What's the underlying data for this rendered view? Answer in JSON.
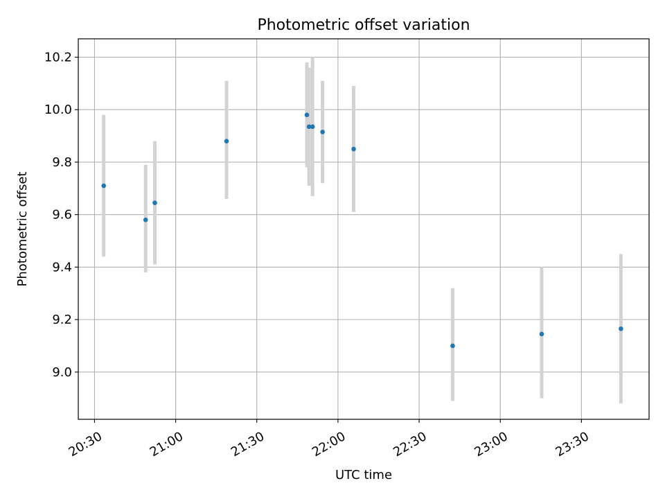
{
  "chart_data": {
    "type": "scatter",
    "title": "Photometric offset variation",
    "xlabel": "UTC time",
    "ylabel": "Photometric offset",
    "x_ticks": [
      {
        "minutes": 1230,
        "label": "20:30"
      },
      {
        "minutes": 1260,
        "label": "21:00"
      },
      {
        "minutes": 1290,
        "label": "21:30"
      },
      {
        "minutes": 1320,
        "label": "22:00"
      },
      {
        "minutes": 1350,
        "label": "22:30"
      },
      {
        "minutes": 1380,
        "label": "23:00"
      },
      {
        "minutes": 1410,
        "label": "23:30"
      }
    ],
    "y_ticks": [
      {
        "value": 9.0,
        "label": "9.0"
      },
      {
        "value": 9.2,
        "label": "9.2"
      },
      {
        "value": 9.4,
        "label": "9.4"
      },
      {
        "value": 9.6,
        "label": "9.6"
      },
      {
        "value": 9.8,
        "label": "9.8"
      },
      {
        "value": 10.0,
        "label": "10.0"
      },
      {
        "value": 10.2,
        "label": "10.2"
      }
    ],
    "xlim_minutes": [
      1224,
      1435
    ],
    "ylim": [
      8.82,
      10.27
    ],
    "grid": true,
    "series": [
      {
        "name": "offset",
        "marker_color": "#1f77b4",
        "error_color": "#d3d3d3",
        "points": [
          {
            "time": "20:33",
            "minutes": 1233.4,
            "y": 9.71,
            "ylow": 9.44,
            "yhigh": 9.98
          },
          {
            "time": "20:48",
            "minutes": 1248.9,
            "y": 9.58,
            "ylow": 9.38,
            "yhigh": 9.79
          },
          {
            "time": "20:52",
            "minutes": 1252.3,
            "y": 9.645,
            "ylow": 9.41,
            "yhigh": 9.88
          },
          {
            "time": "21:19",
            "minutes": 1278.8,
            "y": 9.88,
            "ylow": 9.66,
            "yhigh": 10.11
          },
          {
            "time": "21:49",
            "minutes": 1308.5,
            "y": 9.98,
            "ylow": 9.78,
            "yhigh": 10.18
          },
          {
            "time": "21:49",
            "minutes": 1309.3,
            "y": 9.935,
            "ylow": 9.71,
            "yhigh": 10.16
          },
          {
            "time": "21:50",
            "minutes": 1310.6,
            "y": 9.935,
            "ylow": 9.67,
            "yhigh": 10.2
          },
          {
            "time": "21:54",
            "minutes": 1314.3,
            "y": 9.915,
            "ylow": 9.72,
            "yhigh": 10.11
          },
          {
            "time": "22:06",
            "minutes": 1325.8,
            "y": 9.85,
            "ylow": 9.61,
            "yhigh": 10.09
          },
          {
            "time": "22:42",
            "minutes": 1362.4,
            "y": 9.1,
            "ylow": 8.89,
            "yhigh": 9.32
          },
          {
            "time": "23:15",
            "minutes": 1395.3,
            "y": 9.145,
            "ylow": 8.9,
            "yhigh": 9.4
          },
          {
            "time": "23:44",
            "minutes": 1424.6,
            "y": 9.165,
            "ylow": 8.88,
            "yhigh": 9.45
          }
        ]
      }
    ]
  }
}
